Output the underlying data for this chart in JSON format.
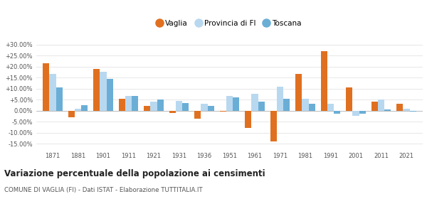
{
  "years": [
    1871,
    1881,
    1901,
    1911,
    1921,
    1931,
    1936,
    1951,
    1961,
    1971,
    1981,
    1991,
    2001,
    2011,
    2021
  ],
  "vaglia": [
    21.5,
    -3.0,
    19.0,
    5.5,
    2.0,
    -1.0,
    -3.5,
    -0.5,
    -7.8,
    -14.0,
    16.5,
    27.0,
    10.5,
    4.0,
    3.0
  ],
  "provincia": [
    16.5,
    1.0,
    17.5,
    6.5,
    4.0,
    4.5,
    3.0,
    6.5,
    7.5,
    11.0,
    5.5,
    3.0,
    -2.5,
    5.0,
    1.0
  ],
  "toscana": [
    10.5,
    2.5,
    14.5,
    6.5,
    5.0,
    3.5,
    2.0,
    6.0,
    4.0,
    5.5,
    3.0,
    -1.5,
    -1.5,
    0.5,
    -0.5
  ],
  "vaglia_color": "#e07020",
  "provincia_color": "#b8d8f0",
  "toscana_color": "#6aaed6",
  "background_color": "#ffffff",
  "grid_color": "#dddddd",
  "title": "Variazione percentuale della popolazione ai censimenti",
  "subtitle": "COMUNE DI VAGLIA (FI) - Dati ISTAT - Elaborazione TUTTITALIA.IT",
  "yticks": [
    -15,
    -10,
    -5,
    0,
    5,
    10,
    15,
    20,
    25,
    30
  ],
  "ylim": [
    -17.5,
    33
  ],
  "bar_width": 0.26
}
